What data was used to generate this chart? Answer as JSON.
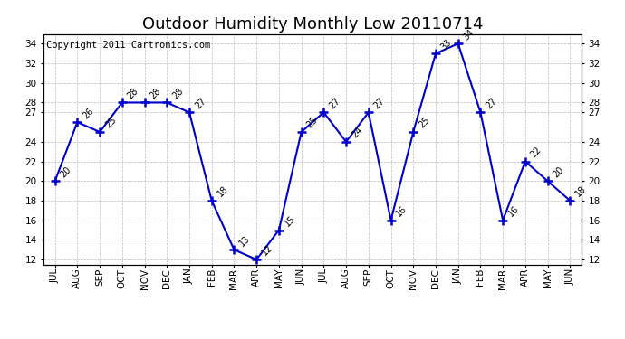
{
  "title": "Outdoor Humidity Monthly Low 20110714",
  "copyright": "Copyright 2011 Cartronics.com",
  "x_labels": [
    "JUL",
    "AUG",
    "SEP",
    "OCT",
    "NOV",
    "DEC",
    "JAN",
    "FEB",
    "MAR",
    "APR",
    "MAY",
    "JUN",
    "JUL",
    "AUG",
    "SEP",
    "OCT",
    "NOV",
    "DEC",
    "JAN",
    "FEB",
    "MAR",
    "APR",
    "MAY",
    "JUN"
  ],
  "y_values": [
    20,
    26,
    25,
    28,
    28,
    28,
    27,
    18,
    13,
    12,
    15,
    25,
    27,
    24,
    27,
    16,
    25,
    33,
    34,
    27,
    16,
    22,
    20,
    18
  ],
  "ylim_min": 11.5,
  "ylim_max": 35.0,
  "yticks": [
    12,
    14,
    16,
    18,
    20,
    22,
    24,
    27,
    28,
    30,
    32,
    34
  ],
  "line_color": "#0000cc",
  "bg_color": "#ffffff",
  "grid_color": "#bbbbbb",
  "title_fontsize": 13,
  "copyright_fontsize": 7.5,
  "annotation_fontsize": 7,
  "tick_fontsize": 7.5
}
